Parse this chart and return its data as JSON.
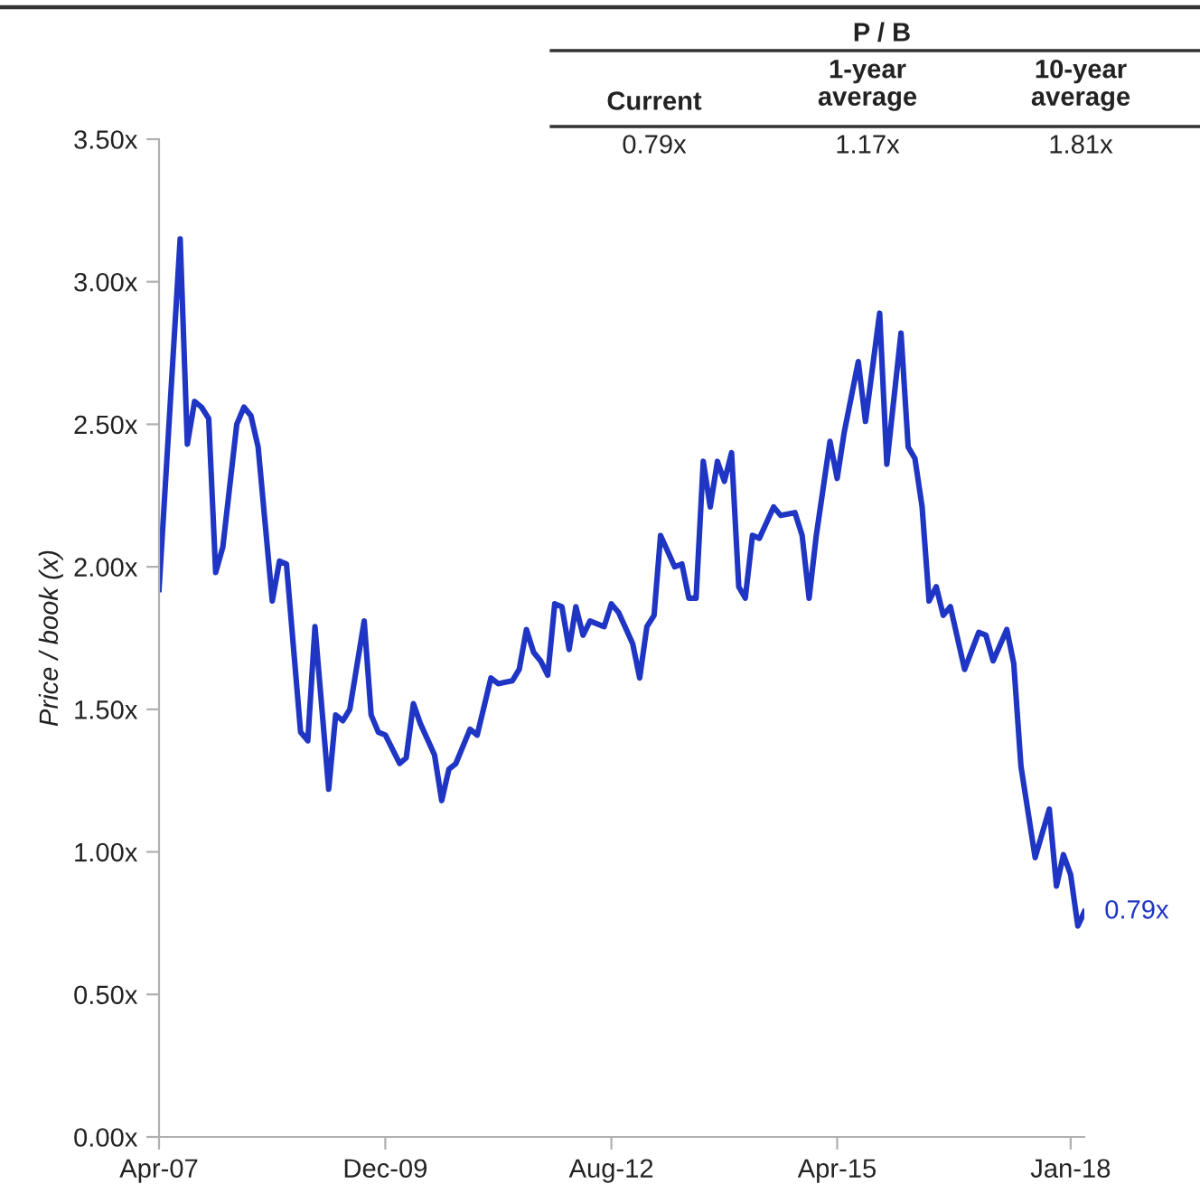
{
  "chart_data": {
    "type": "line",
    "ylabel": "Price / book (x)",
    "x": [
      "2007-04",
      "2007-07",
      "2007-08",
      "2007-09",
      "2007-10",
      "2007-11",
      "2007-12",
      "2008-01",
      "2008-03",
      "2008-04",
      "2008-05",
      "2008-06",
      "2008-08",
      "2008-09",
      "2008-10",
      "2008-12",
      "2009-01",
      "2009-02",
      "2009-04",
      "2009-05",
      "2009-06",
      "2009-07",
      "2009-09",
      "2009-10",
      "2009-11",
      "2009-12",
      "2010-02",
      "2010-03",
      "2010-04",
      "2010-05",
      "2010-07",
      "2010-08",
      "2010-09",
      "2010-10",
      "2010-12",
      "2011-01",
      "2011-03",
      "2011-04",
      "2011-06",
      "2011-07",
      "2011-08",
      "2011-09",
      "2011-10",
      "2011-11",
      "2011-12",
      "2012-01",
      "2012-02",
      "2012-03",
      "2012-04",
      "2012-05",
      "2012-07",
      "2012-08",
      "2012-09",
      "2012-11",
      "2012-12",
      "2013-01",
      "2013-02",
      "2013-03",
      "2013-05",
      "2013-06",
      "2013-07",
      "2013-08",
      "2013-09",
      "2013-10",
      "2013-11",
      "2013-12",
      "2014-01",
      "2014-02",
      "2014-03",
      "2014-04",
      "2014-05",
      "2014-07",
      "2014-08",
      "2014-10",
      "2014-11",
      "2014-12",
      "2015-01",
      "2015-03",
      "2015-04",
      "2015-05",
      "2015-07",
      "2015-08",
      "2015-10",
      "2015-11",
      "2016-01",
      "2016-02",
      "2016-03",
      "2016-04",
      "2016-05",
      "2016-06",
      "2016-07",
      "2016-08",
      "2016-10",
      "2016-12",
      "2017-01",
      "2017-02",
      "2017-04",
      "2017-05",
      "2017-06",
      "2017-08",
      "2017-10",
      "2017-11",
      "2017-12",
      "2018-01",
      "2018-02",
      "2018-03"
    ],
    "series": [
      {
        "color": "#1f35c4",
        "values": [
          1.92,
          3.15,
          2.43,
          2.58,
          2.56,
          2.52,
          1.98,
          2.07,
          2.5,
          2.56,
          2.53,
          2.42,
          1.88,
          2.02,
          2.01,
          1.42,
          1.39,
          1.79,
          1.22,
          1.48,
          1.46,
          1.5,
          1.81,
          1.48,
          1.42,
          1.41,
          1.31,
          1.33,
          1.52,
          1.45,
          1.34,
          1.18,
          1.29,
          1.31,
          1.43,
          1.41,
          1.61,
          1.59,
          1.6,
          1.64,
          1.78,
          1.7,
          1.67,
          1.62,
          1.87,
          1.86,
          1.71,
          1.86,
          1.76,
          1.81,
          1.79,
          1.87,
          1.84,
          1.73,
          1.61,
          1.79,
          1.83,
          2.11,
          2.0,
          2.01,
          1.89,
          1.89,
          2.37,
          2.21,
          2.37,
          2.3,
          2.4,
          1.93,
          1.89,
          2.11,
          2.1,
          2.21,
          2.18,
          2.19,
          2.11,
          1.89,
          2.11,
          2.44,
          2.31,
          2.47,
          2.72,
          2.51,
          2.89,
          2.36,
          2.82,
          2.42,
          2.38,
          2.21,
          1.88,
          1.93,
          1.83,
          1.86,
          1.64,
          1.77,
          1.76,
          1.67,
          1.78,
          1.66,
          1.3,
          0.98,
          1.15,
          0.88,
          0.99,
          0.92,
          0.74,
          0.79
        ]
      }
    ],
    "xlim": [
      "2007-04",
      "2018-03"
    ],
    "xticks": [
      {
        "value": "2007-04",
        "label": "Apr-07"
      },
      {
        "value": "2009-12",
        "label": "Dec-09"
      },
      {
        "value": "2012-08",
        "label": "Aug-12"
      },
      {
        "value": "2015-04",
        "label": "Apr-15"
      },
      {
        "value": "2018-01",
        "label": "Jan-18"
      }
    ],
    "ylim": [
      0,
      3.5
    ],
    "yticks": [
      {
        "value": 0,
        "label": "0.00x"
      },
      {
        "value": 0.5,
        "label": "0.50x"
      },
      {
        "value": 1,
        "label": "1.00x"
      },
      {
        "value": 1.5,
        "label": "1.50x"
      },
      {
        "value": 2,
        "label": "2.00x"
      },
      {
        "value": 2.5,
        "label": "2.50x"
      },
      {
        "value": 3,
        "label": "3.00x"
      },
      {
        "value": 3.5,
        "label": "3.50x"
      }
    ],
    "grid": false,
    "legend": false,
    "marker": "none",
    "line_style": "solid",
    "annotations": [
      "P / B",
      "Current",
      "1-year\naverage",
      "10-year\naverage",
      "0.79x",
      "1.17x",
      "1.81x",
      {
        "text": "0.79x",
        "x": "2018-03",
        "y": 0.79
      }
    ]
  }
}
